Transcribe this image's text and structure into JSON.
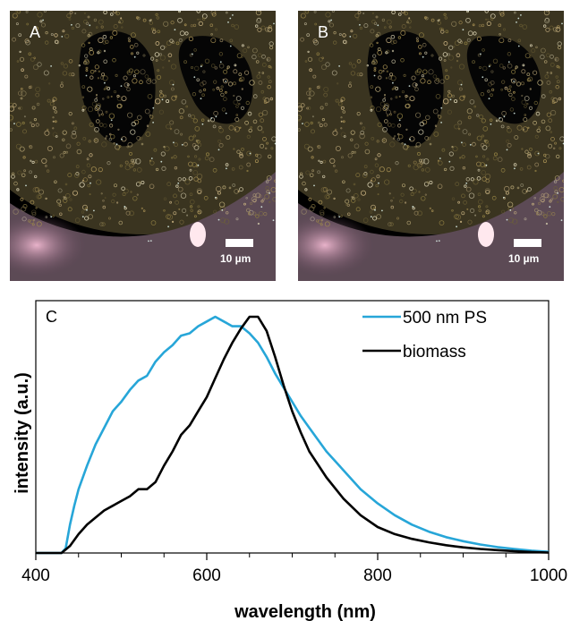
{
  "panels": [
    {
      "letter": "A",
      "scale_label": "10 µm"
    },
    {
      "letter": "B",
      "scale_label": "10 µm"
    }
  ],
  "colors": {
    "background": "#000000",
    "biomass_particles": "#8a7a40",
    "pink_region": "#d8a0b8",
    "ps_series": "#27a6d8",
    "biomass_series": "#000000"
  },
  "chart_data": {
    "type": "line",
    "panel_label": "C",
    "xlabel": "wavelength (nm)",
    "ylabel": "intensity (a.u.)",
    "xlim": [
      400,
      1000
    ],
    "ylim": [
      0,
      1
    ],
    "xticks": [
      400,
      600,
      800,
      1000
    ],
    "xtick_labels": [
      "400",
      "600",
      "800",
      "1000"
    ],
    "y_tick_labels_shown": false,
    "grid": false,
    "legend_position": "top-right",
    "series": [
      {
        "name": "500 nm PS",
        "color": "#27a6d8",
        "x": [
          430,
          435,
          440,
          445,
          450,
          460,
          470,
          480,
          490,
          500,
          510,
          520,
          530,
          540,
          550,
          560,
          570,
          580,
          590,
          600,
          610,
          620,
          630,
          640,
          650,
          660,
          670,
          680,
          690,
          700,
          710,
          720,
          740,
          760,
          780,
          800,
          820,
          840,
          860,
          880,
          900,
          920,
          940,
          960,
          980,
          1000
        ],
        "y": [
          0.0,
          0.02,
          0.12,
          0.2,
          0.27,
          0.37,
          0.46,
          0.53,
          0.6,
          0.64,
          0.69,
          0.73,
          0.75,
          0.81,
          0.85,
          0.88,
          0.92,
          0.93,
          0.96,
          0.98,
          1.0,
          0.98,
          0.96,
          0.96,
          0.93,
          0.89,
          0.83,
          0.76,
          0.7,
          0.64,
          0.58,
          0.53,
          0.43,
          0.35,
          0.27,
          0.21,
          0.16,
          0.12,
          0.09,
          0.067,
          0.05,
          0.036,
          0.025,
          0.017,
          0.01,
          0.005
        ]
      },
      {
        "name": "biomass",
        "color": "#000000",
        "x": [
          430,
          440,
          450,
          460,
          470,
          480,
          490,
          500,
          510,
          520,
          530,
          540,
          550,
          560,
          570,
          580,
          590,
          600,
          610,
          620,
          630,
          640,
          650,
          660,
          670,
          680,
          690,
          700,
          710,
          720,
          740,
          760,
          780,
          800,
          820,
          840,
          860,
          880,
          900,
          920,
          940,
          960,
          980,
          1000
        ],
        "y": [
          0.0,
          0.03,
          0.08,
          0.12,
          0.15,
          0.18,
          0.2,
          0.22,
          0.24,
          0.27,
          0.27,
          0.3,
          0.37,
          0.43,
          0.5,
          0.54,
          0.6,
          0.66,
          0.74,
          0.82,
          0.89,
          0.95,
          1.0,
          1.0,
          0.94,
          0.83,
          0.71,
          0.6,
          0.51,
          0.43,
          0.32,
          0.23,
          0.16,
          0.11,
          0.08,
          0.06,
          0.045,
          0.033,
          0.024,
          0.017,
          0.012,
          0.008,
          0.004,
          0.002
        ]
      }
    ]
  }
}
